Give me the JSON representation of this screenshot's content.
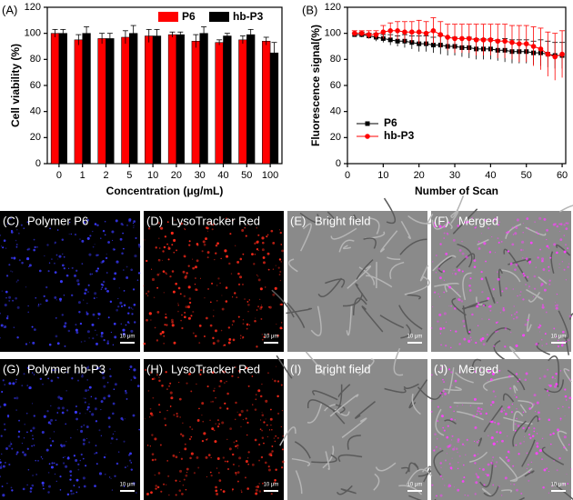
{
  "chart_data": [
    {
      "type": "bar",
      "title": "(A)",
      "xlabel": "Concentration (μg/mL)",
      "ylabel": "Cell viability (%)",
      "categories": [
        "0",
        "1",
        "2",
        "5",
        "10",
        "20",
        "30",
        "40",
        "50",
        "100"
      ],
      "series": [
        {
          "name": "P6",
          "color": "#ff0000",
          "values": [
            100,
            95,
            96,
            97,
            98,
            99,
            94,
            93,
            95,
            94
          ],
          "errors": [
            3,
            4,
            4,
            5,
            5,
            2,
            5,
            2,
            3,
            3
          ]
        },
        {
          "name": "hb-P3",
          "color": "#000000",
          "values": [
            100,
            100,
            96,
            100,
            98,
            99,
            100,
            98,
            99,
            85
          ],
          "errors": [
            3,
            5,
            4,
            6,
            5,
            2,
            5,
            2,
            4,
            8
          ]
        }
      ],
      "ylim": [
        0,
        120
      ],
      "yticks": [
        0,
        20,
        40,
        60,
        80,
        100,
        120
      ],
      "legend": "top-right"
    },
    {
      "type": "line",
      "title": "(B)",
      "xlabel": "Number of Scan",
      "ylabel": "Fluorescence signal(%)",
      "x": [
        2,
        4,
        6,
        8,
        10,
        12,
        14,
        16,
        18,
        20,
        22,
        24,
        26,
        28,
        30,
        32,
        34,
        36,
        38,
        40,
        42,
        44,
        46,
        48,
        50,
        52,
        54,
        56,
        58,
        60
      ],
      "series": [
        {
          "name": "P6",
          "color": "#000000",
          "marker": "square",
          "values": [
            99,
            99,
            98,
            97,
            96,
            95,
            94,
            94,
            93,
            92,
            92,
            91,
            91,
            90,
            90,
            89,
            89,
            88,
            88,
            88,
            87,
            87,
            86,
            86,
            86,
            85,
            85,
            84,
            83,
            83
          ],
          "errors": [
            1,
            2,
            2,
            3,
            3,
            4,
            4,
            5,
            5,
            6,
            6,
            6,
            7,
            7,
            7,
            7,
            8,
            8,
            8,
            8,
            8,
            9,
            9,
            9,
            9,
            9,
            10,
            10,
            10,
            10
          ]
        },
        {
          "name": "hb-P3",
          "color": "#ff0000",
          "marker": "circle",
          "values": [
            100,
            100,
            99,
            99,
            101,
            102,
            102,
            101,
            101,
            101,
            100,
            102,
            99,
            97,
            96,
            96,
            96,
            95,
            95,
            95,
            94,
            94,
            93,
            92,
            92,
            90,
            88,
            84,
            82,
            84
          ],
          "errors": [
            2,
            2,
            3,
            3,
            5,
            6,
            7,
            8,
            8,
            9,
            9,
            10,
            10,
            10,
            11,
            11,
            11,
            12,
            12,
            12,
            13,
            13,
            13,
            14,
            14,
            15,
            16,
            17,
            18,
            18
          ]
        }
      ],
      "xlim": [
        0,
        61
      ],
      "xticks": [
        0,
        10,
        20,
        30,
        40,
        50,
        60
      ],
      "ylim": [
        0,
        120
      ],
      "yticks": [
        0,
        20,
        40,
        60,
        80,
        100,
        120
      ],
      "legend": "middle-left"
    }
  ],
  "panels": [
    {
      "letter": "(C)",
      "label": "Polymer P6",
      "scale": "10 μm",
      "kind": "blue"
    },
    {
      "letter": "(D)",
      "label": "LysoTracker Red",
      "scale": "10 μm",
      "kind": "red"
    },
    {
      "letter": "(E)",
      "label": "Bright field",
      "scale": "10 μm",
      "kind": "bright"
    },
    {
      "letter": "(F)",
      "label": "Merged",
      "scale": "10 μm",
      "kind": "merged"
    },
    {
      "letter": "(G)",
      "label": "Polymer hb-P3",
      "scale": "10 μm",
      "kind": "blue"
    },
    {
      "letter": "(H)",
      "label": "LysoTracker Red",
      "scale": "10 μm",
      "kind": "red"
    },
    {
      "letter": "(I)",
      "label": "Bright field",
      "scale": "10 μm",
      "kind": "bright"
    },
    {
      "letter": "(J)",
      "label": "Merged",
      "scale": "10 μm",
      "kind": "merged"
    }
  ]
}
